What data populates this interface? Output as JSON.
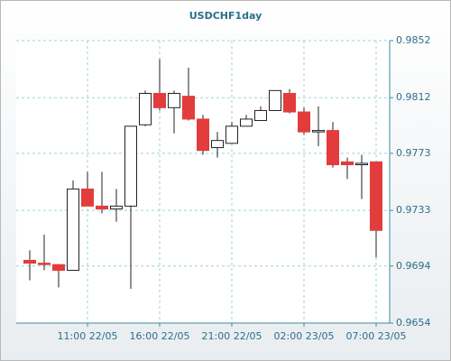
{
  "chart_data": {
    "type": "candlestick",
    "title": "USDCHF1day",
    "categories": [
      null,
      null,
      null,
      null,
      "11:00 22/05",
      null,
      null,
      null,
      null,
      "16:00 22/05",
      null,
      null,
      null,
      null,
      "21:00 22/05",
      null,
      null,
      null,
      null,
      "02:00 23/05",
      null,
      null,
      null,
      null,
      "07:00 23/05"
    ],
    "open": [
      0.9698,
      0.9696,
      0.9695,
      0.9691,
      0.9748,
      0.9736,
      0.9734,
      0.9736,
      0.9793,
      0.9815,
      0.9805,
      0.9813,
      0.9797,
      0.9777,
      0.978,
      0.9792,
      0.9796,
      0.9803,
      0.9815,
      0.9802,
      0.9788,
      0.9789,
      0.9767,
      0.9765,
      0.9767
    ],
    "high": [
      0.9705,
      0.9716,
      0.9695,
      0.9754,
      0.976,
      0.976,
      0.9748,
      0.9792,
      0.9817,
      0.9839,
      0.9817,
      0.9833,
      0.98,
      0.9788,
      0.9795,
      0.98,
      0.9806,
      0.9817,
      0.9818,
      0.9805,
      0.9806,
      0.9795,
      0.977,
      0.9772,
      0.9767
    ],
    "low": [
      0.9684,
      0.9691,
      0.9679,
      0.9691,
      0.9736,
      0.9731,
      0.9725,
      0.9678,
      0.9792,
      0.9803,
      0.9787,
      0.9796,
      0.9772,
      0.977,
      0.978,
      0.9792,
      0.9796,
      0.9803,
      0.9801,
      0.9786,
      0.9778,
      0.9763,
      0.9755,
      0.9741,
      0.97
    ],
    "close": [
      0.9696,
      0.9695,
      0.9691,
      0.9748,
      0.9736,
      0.9734,
      0.9736,
      0.9792,
      0.9815,
      0.9805,
      0.9815,
      0.9797,
      0.9775,
      0.9782,
      0.9792,
      0.9797,
      0.9803,
      0.9817,
      0.9802,
      0.9788,
      0.9789,
      0.9765,
      0.9765,
      0.9766,
      0.9719
    ],
    "up_color": "#ffffff",
    "down_color": "#e23c3c",
    "ylim": [
      0.9654,
      0.9852
    ],
    "yticks": [
      0.9654,
      0.9694,
      0.9733,
      0.9773,
      0.9812,
      0.9852
    ],
    "grid": true
  }
}
